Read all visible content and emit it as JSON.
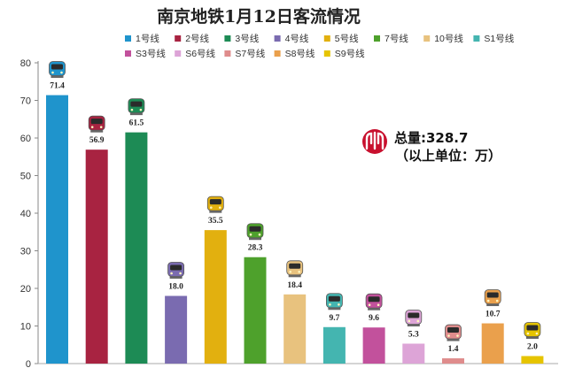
{
  "chart_data": {
    "type": "bar",
    "title": "南京地铁1月12日客流情况",
    "xlabel": "",
    "ylabel": "",
    "ylim": [
      0,
      80
    ],
    "y_ticks": [
      0,
      10,
      20,
      30,
      40,
      50,
      60,
      70,
      80
    ],
    "grid": false,
    "legend_position": "top",
    "categories": [
      "1号线",
      "2号线",
      "3号线",
      "4号线",
      "5号线",
      "7号线",
      "10号线",
      "S1号线",
      "S3号线",
      "S6号线",
      "S7号线",
      "S8号线",
      "S9号线"
    ],
    "values": [
      71.4,
      56.9,
      61.5,
      18.0,
      35.5,
      28.3,
      18.4,
      9.7,
      9.6,
      5.3,
      1.4,
      10.7,
      2.0
    ],
    "value_labels": [
      "71.4",
      "56.9",
      "61.5",
      "18.0",
      "35.5",
      "28.3",
      "18.4",
      "9.7",
      "9.6",
      "5.3",
      "1.4",
      "10.7",
      "2.0"
    ],
    "colors": [
      "#1f94cc",
      "#a82341",
      "#1d8b55",
      "#7a6bb0",
      "#e2b00f",
      "#4ea12c",
      "#e8c27e",
      "#44b5b0",
      "#c2519c",
      "#dda4d7",
      "#df8c8c",
      "#eaa04c",
      "#e6c400"
    ],
    "annotation": {
      "total": "总量:328.7",
      "unit": "（以上单位：万）",
      "logo_color": "#c8102e"
    }
  }
}
